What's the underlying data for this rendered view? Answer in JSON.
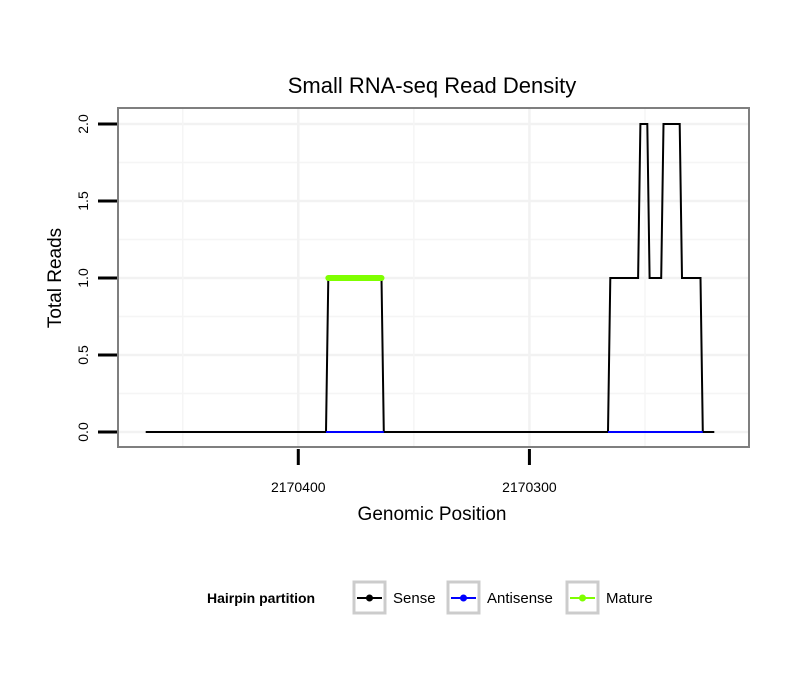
{
  "chart_data": {
    "type": "line",
    "title": "Small RNA-seq Read Density",
    "xlabel": "Genomic Position",
    "ylabel": "Total Reads",
    "ylim": [
      0,
      2.08
    ],
    "yticks": [
      0.0,
      0.5,
      1.0,
      1.5,
      2.0
    ],
    "ytick_labels": [
      "0.0",
      "0.5",
      "1.0",
      "1.5",
      "2.0"
    ],
    "x_reversed": true,
    "xlim": [
      2170478,
      2170205
    ],
    "xticks": [
      2170400,
      2170300
    ],
    "xtick_labels": [
      "2170400",
      "2170300"
    ],
    "legend": {
      "title": "Hairpin partition",
      "position": "bottom",
      "entries": [
        {
          "name": "Sense",
          "color": "#000000"
        },
        {
          "name": "Antisense",
          "color": "#0000ff"
        },
        {
          "name": "Mature",
          "color": "#7fff00"
        }
      ]
    },
    "series": [
      {
        "name": "Sense",
        "color": "#000000",
        "points": [
          [
            2170466,
            0
          ],
          [
            2170388,
            0
          ],
          [
            2170387,
            1
          ],
          [
            2170364,
            1
          ],
          [
            2170363,
            0
          ],
          [
            2170266,
            0
          ],
          [
            2170265,
            1
          ],
          [
            2170253,
            1
          ],
          [
            2170252,
            2
          ],
          [
            2170249,
            2
          ],
          [
            2170248,
            1
          ],
          [
            2170243,
            1
          ],
          [
            2170242,
            2
          ],
          [
            2170235,
            2
          ],
          [
            2170234,
            1
          ],
          [
            2170226,
            1
          ],
          [
            2170225,
            0
          ],
          [
            2170220,
            0
          ]
        ]
      },
      {
        "name": "Antisense",
        "color": "#0000ff",
        "points": [
          [
            2170388,
            0
          ],
          [
            2170363,
            0
          ],
          [
            2170266,
            0
          ],
          [
            2170225,
            0
          ]
        ]
      },
      {
        "name": "Mature",
        "color": "#7fff00",
        "points": [
          [
            2170387,
            1
          ],
          [
            2170364,
            1
          ]
        ]
      }
    ]
  }
}
